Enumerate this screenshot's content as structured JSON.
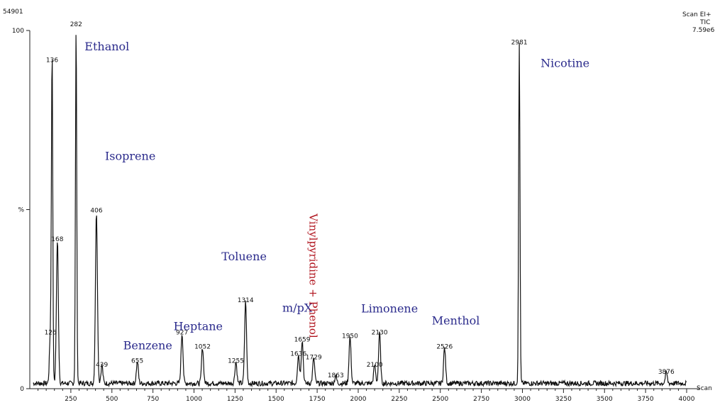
{
  "header": {
    "scale_max": "54901",
    "scan_line1": "Scan EI+",
    "scan_line2": "TIC",
    "scan_line3": "7.59e6"
  },
  "chart_data": {
    "type": "line",
    "xlim": [
      0,
      4000
    ],
    "ylim": [
      0,
      100
    ],
    "xticks": [
      250,
      500,
      750,
      1000,
      1250,
      1500,
      1750,
      2000,
      2250,
      2500,
      2750,
      3000,
      3250,
      3500,
      3750,
      4000
    ],
    "xtick_labels": [
      "250",
      "500",
      "750",
      "1000",
      "1250",
      "1500",
      "1750",
      "2000",
      "2250",
      "2500",
      "2750",
      "3000",
      "3250",
      "3500",
      "3750",
      "4000"
    ],
    "yticks": [
      0,
      50,
      100
    ],
    "ytick_labels": [
      "0",
      "%",
      "100"
    ],
    "xlabel": "Scan",
    "peaks": [
      {
        "scan": 126,
        "y": 14,
        "label": "126"
      },
      {
        "scan": 136,
        "y": 90,
        "label": "136"
      },
      {
        "scan": 168,
        "y": 40,
        "label": "168"
      },
      {
        "scan": 282,
        "y": 100,
        "label": "282"
      },
      {
        "scan": 406,
        "y": 48,
        "label": "406"
      },
      {
        "scan": 439,
        "y": 5,
        "label": "439"
      },
      {
        "scan": 655,
        "y": 6,
        "label": "655"
      },
      {
        "scan": 927,
        "y": 14,
        "label": "927"
      },
      {
        "scan": 1052,
        "y": 10,
        "label": "1052"
      },
      {
        "scan": 1255,
        "y": 6,
        "label": "1255"
      },
      {
        "scan": 1314,
        "y": 23,
        "label": "1314"
      },
      {
        "scan": 1636,
        "y": 8,
        "label": "1636"
      },
      {
        "scan": 1659,
        "y": 12,
        "label": "1659"
      },
      {
        "scan": 1729,
        "y": 7,
        "label": "1729"
      },
      {
        "scan": 1863,
        "y": 2,
        "label": "1863"
      },
      {
        "scan": 1950,
        "y": 13,
        "label": "1950"
      },
      {
        "scan": 2100,
        "y": 5,
        "label": "2100"
      },
      {
        "scan": 2130,
        "y": 14,
        "label": "2130"
      },
      {
        "scan": 2526,
        "y": 10,
        "label": "2526"
      },
      {
        "scan": 2981,
        "y": 95,
        "label": "2981"
      },
      {
        "scan": 3876,
        "y": 3,
        "label": "3876"
      }
    ],
    "annotations": [
      {
        "text": "Ethanol",
        "scan": 282
      },
      {
        "text": "Isoprene",
        "scan": 406
      },
      {
        "text": "Benzene",
        "scan": 655
      },
      {
        "text": "Heptane",
        "scan": 927
      },
      {
        "text": "Toluene",
        "scan": 1314
      },
      {
        "text": "m/pX",
        "scan": 1659
      },
      {
        "text": "Vinylpyridine + Phenol",
        "scan": 1729
      },
      {
        "text": "Limonene",
        "scan": 2130
      },
      {
        "text": "Menthol",
        "scan": 2526
      },
      {
        "text": "Nicotine",
        "scan": 2981
      }
    ]
  }
}
